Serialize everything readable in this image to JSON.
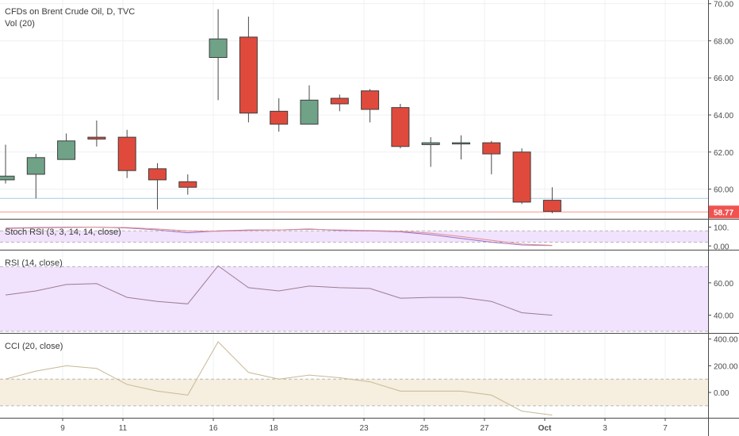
{
  "header": {
    "symbol_line": "CFDs on Brent Crude Oil, D, TVC",
    "volume_label": "Vol (20)"
  },
  "colors": {
    "up": "#6fa287",
    "down": "#e04a3c",
    "rsi_fill": "#f1e2fd",
    "cci_fill": "#f6eede",
    "line": "#9c7d8e",
    "cci_line": "#c7b895",
    "price_tag": "#ef5350"
  },
  "chart_data": [
    {
      "type": "candlestick",
      "title": "CFDs on Brent Crude Oil, D, TVC",
      "x_labels": [
        "9",
        "11",
        "16",
        "18",
        "23",
        "25",
        "27",
        "Oct",
        "3",
        "7"
      ],
      "y_ticks": [
        60,
        62,
        64,
        66,
        68,
        70
      ],
      "ylim": [
        58.4,
        70.2
      ],
      "last_price": 58.77,
      "last_price_label": "58.77",
      "candles": [
        {
          "o": 60.5,
          "h": 62.4,
          "l": 60.3,
          "c": 60.7
        },
        {
          "o": 60.8,
          "h": 61.9,
          "l": 59.5,
          "c": 61.7
        },
        {
          "o": 61.6,
          "h": 63.0,
          "l": 61.6,
          "c": 62.6
        },
        {
          "o": 62.8,
          "h": 63.7,
          "l": 62.3,
          "c": 62.7
        },
        {
          "o": 62.8,
          "h": 63.2,
          "l": 60.6,
          "c": 61.0
        },
        {
          "o": 61.1,
          "h": 61.4,
          "l": 58.9,
          "c": 60.5
        },
        {
          "o": 60.4,
          "h": 60.8,
          "l": 59.7,
          "c": 60.1
        },
        {
          "o": 67.1,
          "h": 69.7,
          "l": 64.8,
          "c": 68.1
        },
        {
          "o": 68.2,
          "h": 69.3,
          "l": 63.6,
          "c": 64.1
        },
        {
          "o": 64.2,
          "h": 64.9,
          "l": 63.1,
          "c": 63.5
        },
        {
          "o": 63.5,
          "h": 65.6,
          "l": 63.5,
          "c": 64.8
        },
        {
          "o": 64.9,
          "h": 65.1,
          "l": 64.2,
          "c": 64.6
        },
        {
          "o": 65.3,
          "h": 65.4,
          "l": 63.6,
          "c": 64.3
        },
        {
          "o": 64.4,
          "h": 64.6,
          "l": 62.2,
          "c": 62.3
        },
        {
          "o": 62.4,
          "h": 62.8,
          "l": 61.2,
          "c": 62.5
        },
        {
          "o": 62.5,
          "h": 62.9,
          "l": 61.6,
          "c": 62.5
        },
        {
          "o": 62.5,
          "h": 62.6,
          "l": 60.8,
          "c": 61.9
        },
        {
          "o": 62.0,
          "h": 62.2,
          "l": 59.2,
          "c": 59.3
        },
        {
          "o": 59.4,
          "h": 60.1,
          "l": 58.7,
          "c": 58.8
        }
      ],
      "horizontal_lines": [
        {
          "value": 59.5,
          "color": "#a9cbe3"
        },
        {
          "value": 58.77,
          "color": "#f29a88"
        }
      ]
    },
    {
      "type": "line",
      "title": "Stoch RSI (3, 3, 14, 14, close)",
      "y_ticks": [
        0,
        100
      ],
      "y_tick_labels": [
        "0.00",
        "100."
      ],
      "ylim": [
        -20,
        140
      ],
      "band": [
        20,
        80
      ],
      "series": [
        {
          "color": "#9c6fc4",
          "values": [
            95,
            98,
            100,
            100,
            95,
            85,
            70,
            80,
            85,
            85,
            90,
            82,
            80,
            75,
            60,
            40,
            20,
            5,
            2
          ]
        },
        {
          "color": "#e08f8f",
          "values": [
            92,
            96,
            98,
            100,
            98,
            90,
            80,
            78,
            82,
            85,
            88,
            85,
            82,
            78,
            68,
            50,
            30,
            10,
            3
          ]
        }
      ]
    },
    {
      "type": "line",
      "title": "RSI (14, close)",
      "y_ticks": [
        40,
        60
      ],
      "y_tick_labels": [
        "40.00",
        "60.00"
      ],
      "ylim": [
        29,
        80
      ],
      "band": [
        30,
        70
      ],
      "values": [
        52.5,
        55,
        59,
        59.5,
        51,
        48.5,
        47,
        70.5,
        57,
        55,
        58,
        57,
        56.5,
        50.5,
        51,
        51,
        48.5,
        41.5,
        40
      ]
    },
    {
      "type": "line",
      "title": "CCI (20, close)",
      "y_ticks": [
        0,
        200,
        400
      ],
      "y_tick_labels": [
        "0.00",
        "200.00",
        "400.00"
      ],
      "ylim": [
        -190,
        440
      ],
      "band": [
        -100,
        100
      ],
      "values": [
        100,
        160,
        200,
        180,
        60,
        10,
        -20,
        380,
        150,
        100,
        130,
        110,
        80,
        10,
        10,
        10,
        -20,
        -140,
        -170
      ]
    }
  ]
}
